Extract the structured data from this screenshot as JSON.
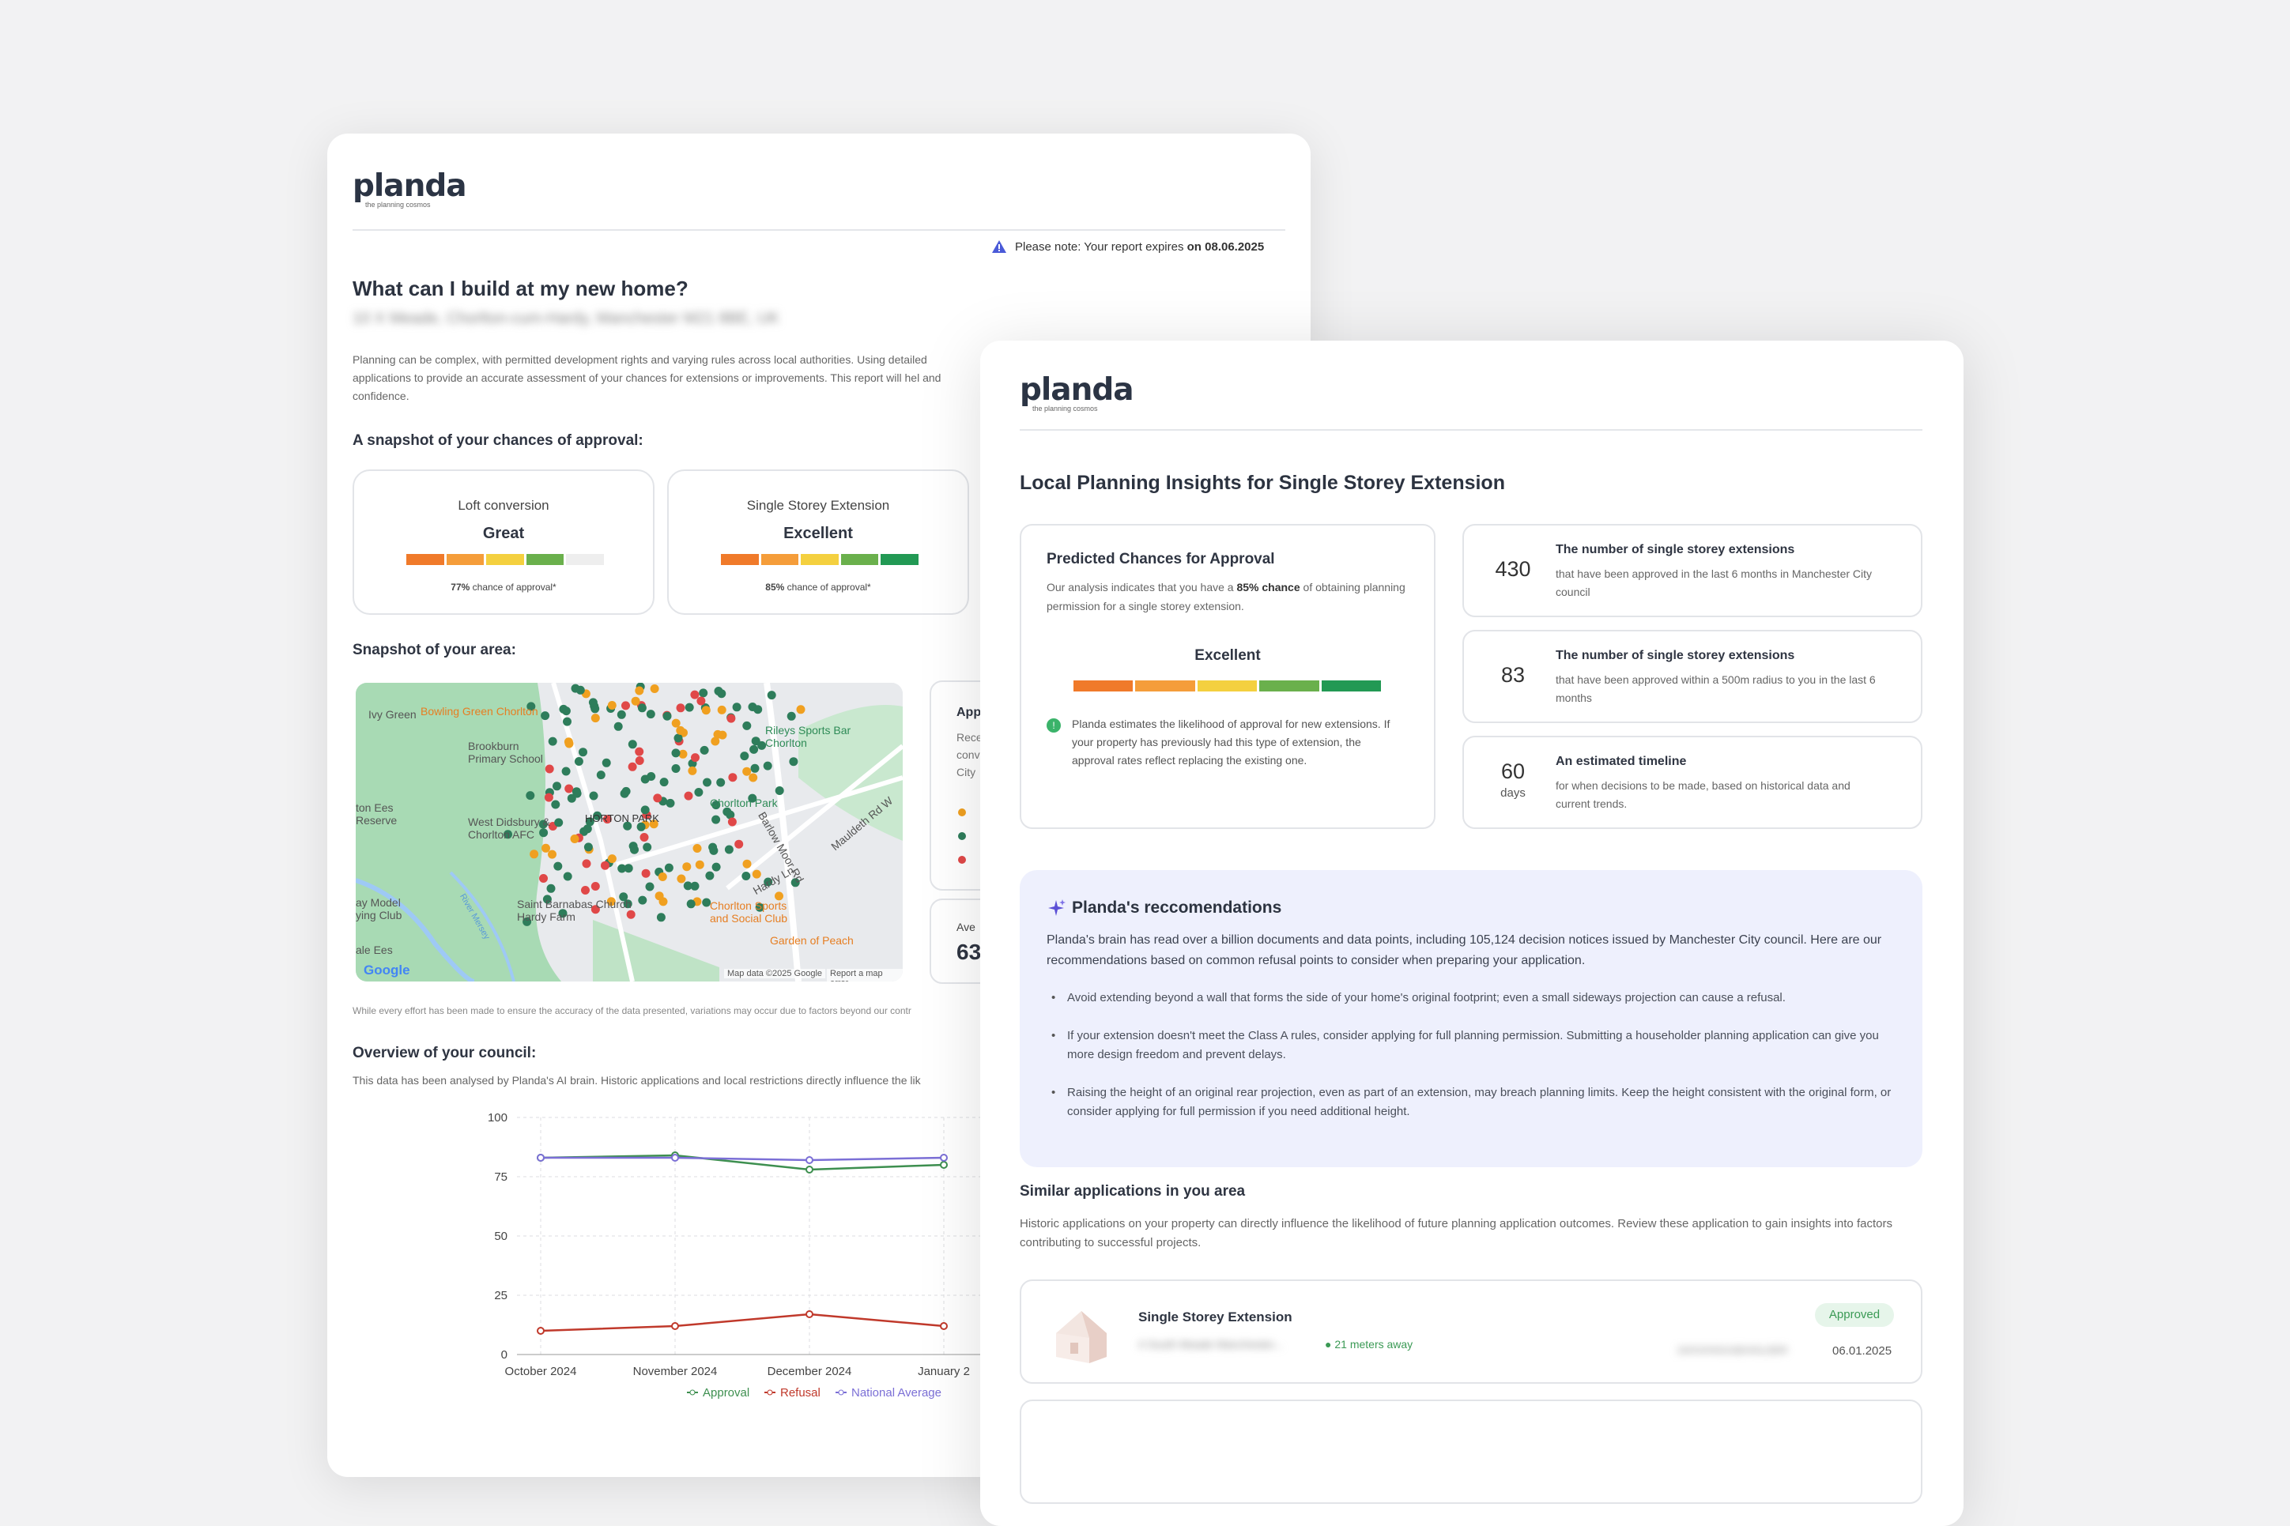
{
  "brand": {
    "name": "planda",
    "tagline": "the planning cosmos"
  },
  "report": {
    "notice_prefix": "Please note: Your report expires ",
    "notice_date": "on 08.06.2025",
    "title": "What can I build at my new home?",
    "address": "10 X Meade, Chorlton-cum-Hardy, Manchester M21 8BE, UK",
    "intro": "Planning can be complex, with permitted development rights and varying rules across local authorities. Using detailed applications to provide an accurate assessment of your chances for extensions or improvements. This report will hel and confidence.",
    "snapshot_heading": "A snapshot of your chances of approval:",
    "chances": [
      {
        "type": "Loft conversion",
        "rating": "Great",
        "pct": "77%",
        "suffix": " chance of approval*",
        "level": 4
      },
      {
        "type": "Single Storey Extension",
        "rating": "Excellent",
        "pct": "85%",
        "suffix": " chance of approval*",
        "level": 5
      }
    ],
    "area_heading": "Snapshot of your area:",
    "map_labels": [
      "Ivy Green",
      "Bowling Green Chorlton",
      "Brookburn Primary School",
      "Rileys Sports Bar Chorlton",
      "ton Ees Reserve",
      "West Didsbury & Chorlton AFC",
      "Chorlton Park",
      "Barlow Moor Rd",
      "Mauldeth Rd W",
      "Hardy Ln",
      "ay Model ying Club",
      "Saint Barnabas Church Hardy Farm",
      "Chorlton Sports and Social Club",
      "Garden of Peach",
      "ale Ees",
      "River Mersey",
      "HORTON PARK",
      "Google",
      "Map data ©2025 Google",
      "Report a map error"
    ],
    "side_panel": {
      "app": "App",
      "rece": "Rece",
      "conv": "conv",
      "city": "City",
      "ave": "Ave",
      "value": "63"
    },
    "disclaimer": "While every effort has been made to ensure the accuracy of the data presented, variations may occur due to factors beyond our contr",
    "council_heading": "Overview of your council:",
    "council_text": "This data has been analysed by Planda's AI brain. Historic applications and local restrictions directly influence the lik"
  },
  "chart_data": {
    "type": "line",
    "categories": [
      "October 2024",
      "November 2024",
      "December 2024",
      "January 2"
    ],
    "ylim": [
      0,
      100
    ],
    "yticks": [
      "0",
      "25",
      "50",
      "75",
      "100"
    ],
    "series": [
      {
        "name": "Approval",
        "values": [
          83,
          84,
          78,
          80
        ],
        "color": "#3d8f4f"
      },
      {
        "name": "Refusal",
        "values": [
          10,
          12,
          17,
          12
        ],
        "color": "#c0392b"
      },
      {
        "name": "National Average",
        "values": [
          83,
          83,
          82,
          83
        ],
        "color": "#7b6fd6"
      }
    ]
  },
  "insights": {
    "title": "Local Planning Insights for Single Storey Extension",
    "predicted": {
      "heading": "Predicted Chances for Approval",
      "text_a": "Our analysis indicates that you have a ",
      "text_bold": "85% chance",
      "text_b": " of obtaining planning permission for a single storey extension.",
      "rating": "Excellent",
      "note": "Planda estimates the likelihood of approval for new extensions. If your property has previously had this type of extension, the approval rates reflect replacing the existing one."
    },
    "stats": [
      {
        "value": "430",
        "unit": "",
        "title": "The number of single storey extensions",
        "text": "that have been approved in the last 6 months in Manchester City council"
      },
      {
        "value": "83",
        "unit": "",
        "title": "The number of single storey extensions",
        "text": "that have been approved within a 500m radius to you in the last 6 months"
      },
      {
        "value": "60",
        "unit": "days",
        "title": "An estimated timeline",
        "text": "for when decisions to be made, based on historical data and current trends."
      }
    ],
    "recs": {
      "heading": "Planda's reccomendations",
      "intro": "Planda's brain has read over a billion documents and data points, including 105,124 decision notices issued by Manchester City council. Here are our recommendations based on common refusal points to consider when preparing your application.",
      "items": [
        "Avoid extending beyond a wall that forms the side of your home's original footprint; even a small sideways projection can cause a refusal.",
        "If your extension doesn't meet the Class A rules, consider applying for full planning permission. Submitting a householder planning application can give you more design freedom and prevent delays.",
        "Raising the height of an original rear projection, even as part of an extension, may breach planning limits. Keep the height consistent with the original form, or consider applying for full permission if you need additional height."
      ]
    },
    "similar": {
      "heading": "Similar applications in you area",
      "text": "Historic applications on your property can directly influence the likelihood of future planning application outcomes. Review these application to gain insights into factors contributing to successful projects.",
      "item": {
        "title": "Single Storey Extension",
        "address": "4 South Meade Manchester...",
        "distance": "21 meters away",
        "status": "Approved",
        "ref": "24/XX/HOUSEHOLDER",
        "date": "06.01.2025"
      }
    }
  },
  "colors": {
    "seg": [
      "#f07a2a",
      "#f59d3a",
      "#f4d03f",
      "#6ab04c",
      "#229954"
    ],
    "seg_empty": "#eeeeee",
    "rec_bg": "#eef0fd",
    "accent": "#5b4fd6"
  }
}
